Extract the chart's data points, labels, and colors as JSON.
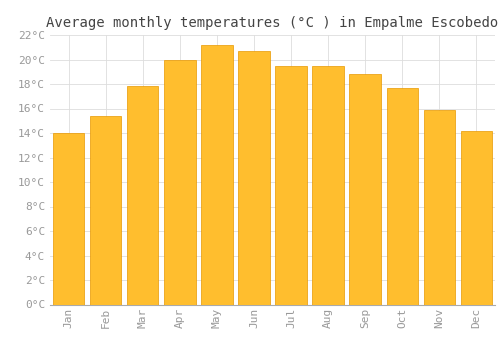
{
  "title": "Average monthly temperatures (°C ) in Empalme Escobedo",
  "months": [
    "Jan",
    "Feb",
    "Mar",
    "Apr",
    "May",
    "Jun",
    "Jul",
    "Aug",
    "Sep",
    "Oct",
    "Nov",
    "Dec"
  ],
  "values": [
    14.0,
    15.4,
    17.8,
    20.0,
    21.2,
    20.7,
    19.5,
    19.5,
    18.8,
    17.7,
    15.9,
    14.2
  ],
  "bar_color_top": "#FFBE2E",
  "bar_color_bottom": "#FFA500",
  "bar_edge_color": "#E89800",
  "background_color": "#FFFFFF",
  "grid_color": "#DDDDDD",
  "tick_label_color": "#999999",
  "title_color": "#444444",
  "ylim": [
    0,
    22
  ],
  "ytick_step": 2,
  "title_fontsize": 10,
  "tick_fontsize": 8,
  "bar_width": 0.85
}
